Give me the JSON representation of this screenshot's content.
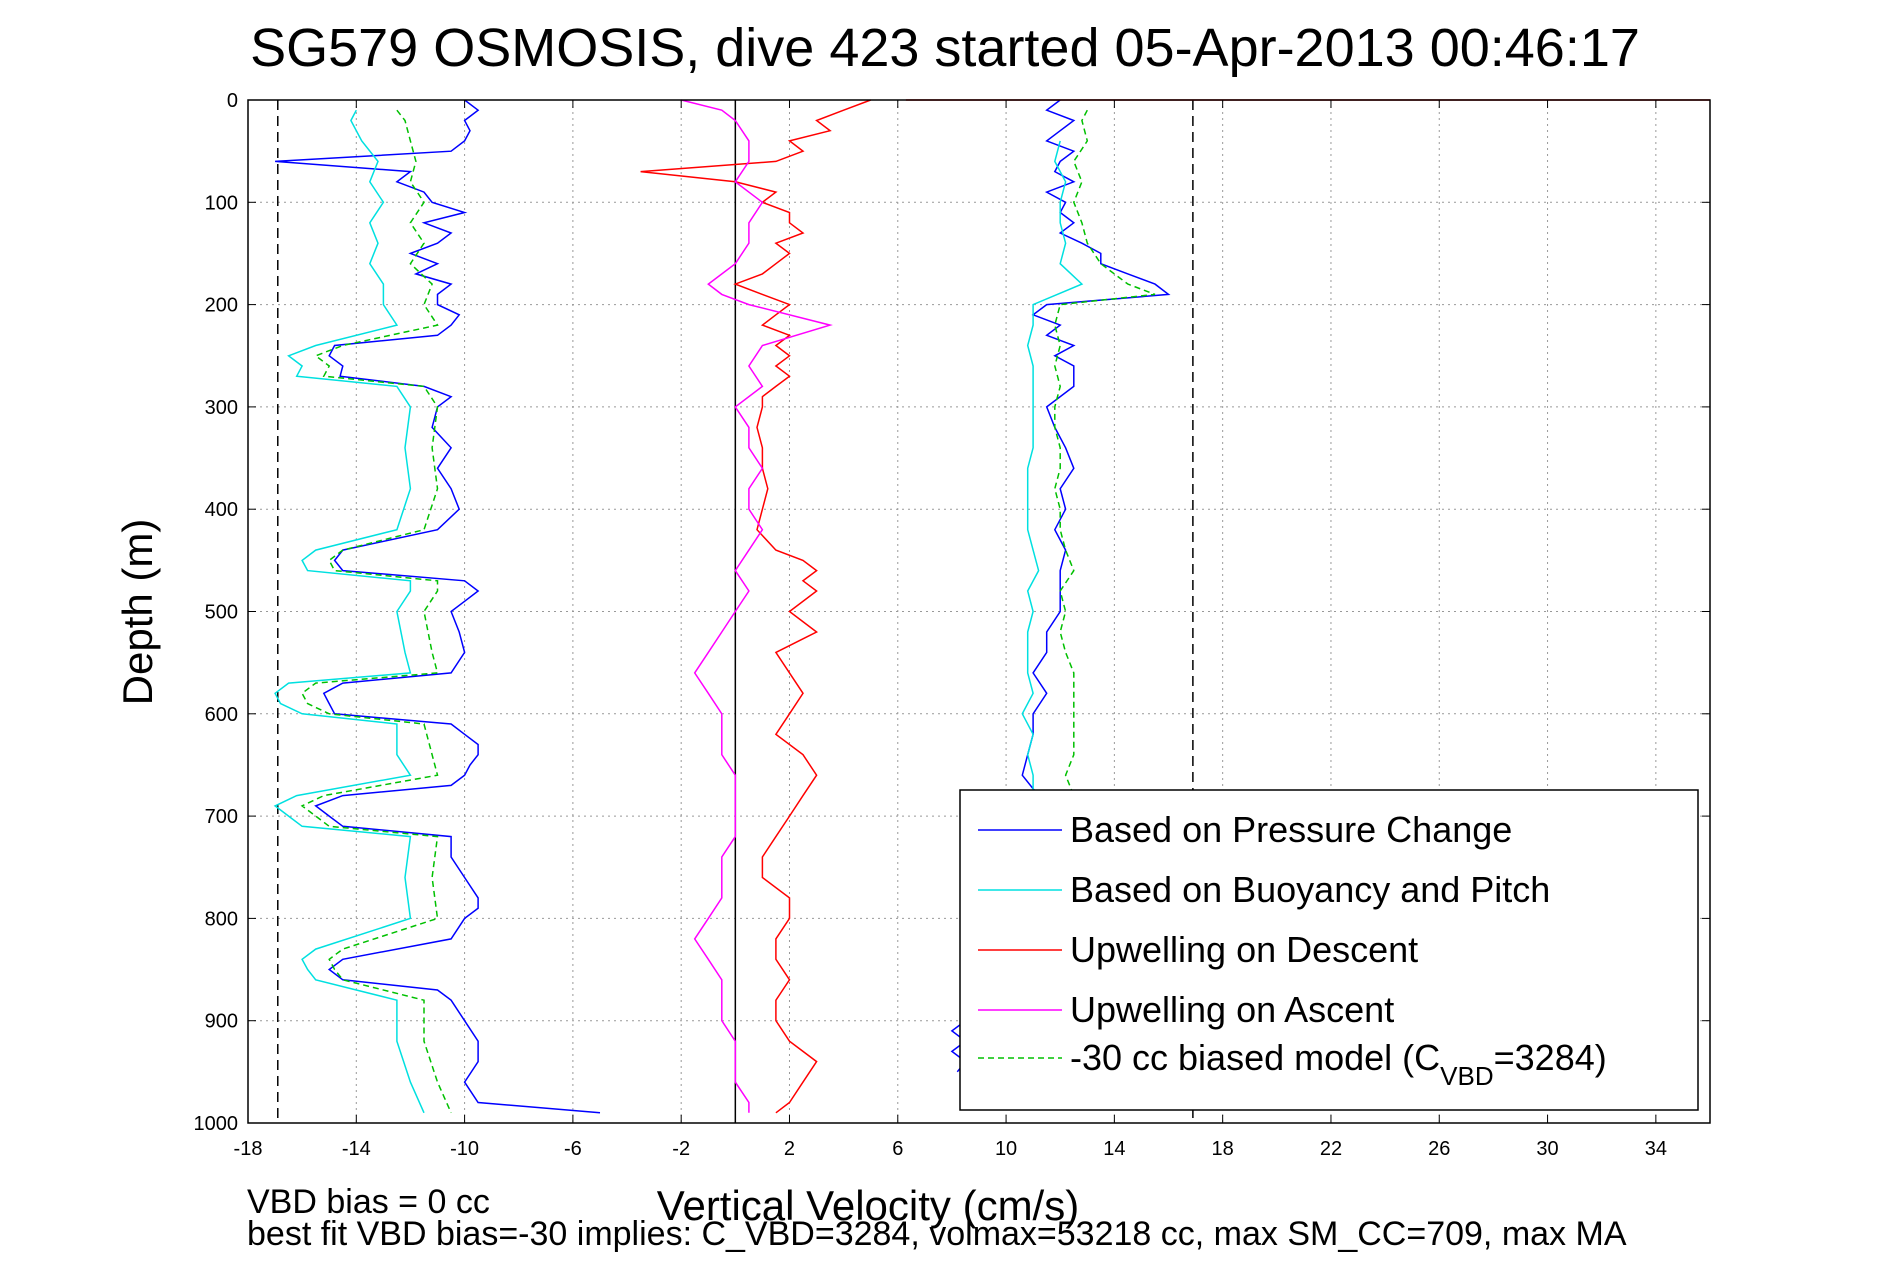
{
  "chart_data": {
    "type": "line",
    "title": "SG579 OSMOSIS, dive 423 started 05-Apr-2013 00:46:17",
    "xlabel": "Vertical Velocity (cm/s)",
    "ylabel": "Depth (m)",
    "xlim": [
      -18,
      36
    ],
    "ylim": [
      0,
      1000
    ],
    "y_reversed": true,
    "xticks": [
      -18,
      -14,
      -10,
      -6,
      -2,
      2,
      6,
      10,
      14,
      18,
      22,
      26,
      30,
      34
    ],
    "yticks": [
      0,
      100,
      200,
      300,
      400,
      500,
      600,
      700,
      800,
      900,
      1000
    ],
    "grid": true,
    "legend_position": "bottom-right",
    "reference_lines": [
      {
        "x": -16.9,
        "style": "dashed",
        "color": "#000000"
      },
      {
        "x": 0,
        "style": "solid",
        "color": "#000000"
      },
      {
        "x": 16.9,
        "style": "dashed",
        "color": "#000000"
      }
    ],
    "series": [
      {
        "name": "Based on Pressure Change",
        "color": "#0000ff",
        "style": "solid",
        "segments": [
          {
            "depth": [
              0,
              10,
              20,
              30,
              40,
              50,
              60,
              70,
              80,
              90,
              100,
              110,
              120,
              130,
              140,
              150,
              160,
              170,
              180,
              190,
              200,
              210,
              220,
              230,
              240,
              250,
              260,
              270,
              280,
              290,
              300,
              320,
              340,
              360,
              380,
              400,
              420,
              440,
              450,
              460,
              470,
              480,
              490,
              500,
              520,
              540,
              560,
              570,
              580,
              590,
              600,
              610,
              620,
              630,
              640,
              650,
              660,
              670,
              680,
              690,
              700,
              710,
              720,
              740,
              760,
              780,
              790,
              800,
              820,
              840,
              850,
              860,
              870,
              880,
              900,
              920,
              940,
              960,
              980,
              990
            ],
            "x": [
              -10,
              -9.5,
              -10,
              -9.8,
              -10,
              -10.5,
              -17,
              -12,
              -12.5,
              -11.5,
              -11.2,
              -10,
              -11.5,
              -10.5,
              -11,
              -12,
              -11,
              -11.8,
              -10.5,
              -11,
              -11,
              -10.2,
              -10.5,
              -11,
              -14.8,
              -15,
              -14.5,
              -14.6,
              -11.5,
              -10.5,
              -11,
              -11.2,
              -10.5,
              -11,
              -10.5,
              -10.2,
              -11,
              -14.5,
              -14.8,
              -14.5,
              -10,
              -9.5,
              -10,
              -10.5,
              -10.2,
              -10,
              -10.5,
              -14.5,
              -15.2,
              -15,
              -14.8,
              -10.5,
              -10,
              -9.5,
              -9.5,
              -9.8,
              -10,
              -10.5,
              -14.5,
              -15.5,
              -15,
              -14.5,
              -10.5,
              -10.5,
              -10,
              -9.5,
              -9.5,
              -10,
              -10.5,
              -14.5,
              -15,
              -14.5,
              -11,
              -10.5,
              -10,
              -9.5,
              -9.5,
              -10,
              -9.5,
              -5
            ]
          },
          {
            "depth": [
              0,
              10,
              20,
              30,
              40,
              50,
              60,
              70,
              80,
              90,
              100,
              110,
              120,
              130,
              140,
              150,
              160,
              170,
              180,
              190,
              200,
              210,
              220,
              230,
              240,
              250,
              260,
              280,
              300,
              320,
              340,
              360,
              380,
              400,
              420,
              440,
              460,
              480,
              500,
              520,
              540,
              560,
              580,
              600,
              620,
              640,
              660,
              680,
              700,
              720,
              740,
              760,
              780,
              800,
              820,
              840,
              860,
              880,
              890,
              900,
              910,
              920,
              930,
              940,
              950
            ],
            "x": [
              12,
              11.5,
              12.5,
              12,
              11.5,
              12.5,
              12,
              11.8,
              12.5,
              11.5,
              12.2,
              12,
              12.5,
              12,
              12.8,
              13.5,
              13.5,
              14.5,
              15.5,
              16,
              11.5,
              11,
              12,
              11.5,
              12.5,
              11.8,
              12.5,
              12.5,
              11.5,
              11.8,
              12.2,
              12.5,
              12,
              12.2,
              11.8,
              12.2,
              12,
              12,
              12,
              11.5,
              11.5,
              11,
              11.5,
              11,
              11,
              10.8,
              10.6,
              11.2,
              11.5,
              11,
              11.5,
              11.5,
              11,
              11.5,
              11.2,
              11,
              11.5,
              11.2,
              8.5,
              8.5,
              8,
              8.5,
              8,
              8.5,
              8.2
            ]
          }
        ]
      },
      {
        "name": "Based on Buoyancy and Pitch",
        "color": "#00e0e0",
        "style": "solid",
        "segments": [
          {
            "depth": [
              10,
              20,
              40,
              60,
              80,
              100,
              120,
              140,
              160,
              180,
              200,
              220,
              240,
              250,
              260,
              270,
              280,
              300,
              340,
              380,
              420,
              440,
              450,
              460,
              470,
              480,
              500,
              540,
              560,
              570,
              580,
              590,
              600,
              610,
              640,
              660,
              680,
              690,
              700,
              710,
              720,
              760,
              800,
              830,
              840,
              850,
              860,
              880,
              920,
              960,
              990
            ],
            "x": [
              -14,
              -14.2,
              -13.8,
              -13.2,
              -13.5,
              -13,
              -13.5,
              -13.2,
              -13.5,
              -13,
              -13,
              -12.5,
              -15.5,
              -16.5,
              -16,
              -16.2,
              -12.5,
              -12,
              -12.2,
              -12,
              -12.5,
              -15.5,
              -16,
              -15.8,
              -12,
              -12,
              -12.5,
              -12.2,
              -12,
              -16.5,
              -17,
              -16.8,
              -16,
              -12.5,
              -12.5,
              -12,
              -16.2,
              -17,
              -16.5,
              -16,
              -12,
              -12.2,
              -12,
              -15.5,
              -16,
              -15.8,
              -15.5,
              -12.5,
              -12.5,
              -12,
              -11.5
            ]
          },
          {
            "depth": [
              40,
              60,
              80,
              100,
              120,
              140,
              160,
              180,
              200,
              220,
              240,
              260,
              280,
              300,
              320,
              340,
              360,
              380,
              400,
              420,
              440,
              460,
              480,
              500,
              520,
              540,
              560,
              580,
              600,
              620,
              640,
              660,
              680,
              700,
              720,
              740,
              760,
              780,
              800
            ],
            "x": [
              12,
              11.8,
              12.2,
              12,
              12,
              12.2,
              12,
              12.8,
              11,
              11,
              10.8,
              11,
              11,
              11,
              11,
              11,
              10.8,
              10.8,
              10.8,
              10.8,
              11,
              11.2,
              10.8,
              11,
              10.8,
              10.8,
              10.8,
              11,
              10.6,
              11,
              10.8,
              11,
              11,
              11,
              11,
              11,
              10.8,
              11,
              10.8
            ]
          }
        ]
      },
      {
        "name": "Upwelling on Descent",
        "color": "#ff0000",
        "style": "solid",
        "segments": [
          {
            "depth": [
              0,
              10,
              20,
              30,
              40,
              50,
              60,
              70,
              80,
              90,
              100,
              110,
              120,
              130,
              140,
              150,
              160,
              170,
              180,
              190,
              200,
              210,
              220,
              230,
              240,
              250,
              260,
              270,
              280,
              290,
              300,
              320,
              340,
              360,
              380,
              400,
              420,
              440,
              450,
              460,
              470,
              480,
              500,
              520,
              540,
              560,
              580,
              600,
              620,
              640,
              660,
              680,
              700,
              720,
              740,
              760,
              780,
              800,
              820,
              840,
              860,
              880,
              900,
              920,
              940,
              960,
              980,
              990
            ],
            "x": [
              5,
              4,
              3,
              3.5,
              2,
              2.5,
              1.5,
              -3.5,
              0,
              1.5,
              1,
              2,
              2,
              2.5,
              1.5,
              2,
              1.5,
              1,
              0,
              1,
              2,
              1.5,
              1,
              2,
              1.5,
              2,
              1.5,
              2,
              1.5,
              1,
              1,
              0.8,
              1,
              1,
              1.2,
              1,
              0.8,
              1.5,
              2.5,
              3,
              2.5,
              3,
              2,
              3,
              1.5,
              2,
              2.5,
              2,
              1.5,
              2.5,
              3,
              2.5,
              2,
              1.5,
              1,
              1,
              2,
              2,
              1.5,
              1.5,
              2,
              1.5,
              1.5,
              2,
              3,
              2.5,
              2,
              1.5
            ]
          },
          {
            "depth": [
              0
            ],
            "x": [
              36
            ]
          }
        ]
      },
      {
        "name": "Upwelling on Ascent",
        "color": "#ff00ff",
        "style": "solid",
        "segments": [
          {
            "depth": [
              0,
              10,
              20,
              40,
              60,
              80,
              100,
              120,
              140,
              160,
              180,
              190,
              200,
              220,
              240,
              260,
              280,
              300,
              320,
              340,
              360,
              380,
              400,
              420,
              440,
              460,
              480,
              500,
              520,
              540,
              560,
              580,
              600,
              620,
              640,
              660,
              680,
              700,
              720,
              740,
              760,
              780,
              800,
              820,
              840,
              860,
              880,
              900,
              920,
              940,
              960,
              980,
              990
            ],
            "x": [
              -2,
              -0.5,
              0,
              0.5,
              0.5,
              0,
              1,
              0.5,
              0.5,
              0,
              -1,
              -0.5,
              0.5,
              3.5,
              1,
              0.5,
              1,
              0,
              0.5,
              0.5,
              1,
              0.5,
              0.5,
              1,
              0.5,
              0,
              0.5,
              0,
              -0.5,
              -1,
              -1.5,
              -1,
              -0.5,
              -0.5,
              -0.5,
              0,
              0,
              0,
              0,
              -0.5,
              -0.5,
              -0.5,
              -1,
              -1.5,
              -1,
              -0.5,
              -0.5,
              -0.5,
              0,
              0,
              0,
              0.5,
              0.5
            ]
          }
        ]
      },
      {
        "name": "-30 cc biased model (C",
        "name_sub": "VBD",
        "name_tail": "=3284)",
        "color": "#00c000",
        "style": "dashed",
        "segments": [
          {
            "depth": [
              10,
              20,
              40,
              60,
              80,
              100,
              120,
              140,
              160,
              180,
              200,
              220,
              240,
              250,
              260,
              270,
              280,
              300,
              340,
              380,
              420,
              440,
              450,
              460,
              470,
              480,
              500,
              540,
              560,
              570,
              580,
              590,
              600,
              610,
              640,
              660,
              680,
              690,
              700,
              710,
              720,
              760,
              800,
              830,
              840,
              850,
              860,
              880,
              920,
              960,
              990
            ],
            "x": [
              -12.5,
              -12.2,
              -12,
              -11.8,
              -12,
              -11.5,
              -12,
              -11.5,
              -12,
              -11.2,
              -11.5,
              -11,
              -14.5,
              -15.5,
              -15,
              -15.2,
              -11.5,
              -11,
              -11.2,
              -11,
              -11.5,
              -14.5,
              -15,
              -14.8,
              -11,
              -11,
              -11.5,
              -11.2,
              -11,
              -15.5,
              -16,
              -15.8,
              -15,
              -11.5,
              -11.2,
              -11,
              -15.2,
              -16,
              -15.5,
              -15,
              -11,
              -11.2,
              -11,
              -14.5,
              -15,
              -14.8,
              -14.5,
              -11.5,
              -11.5,
              -11,
              -10.5
            ]
          },
          {
            "depth": [
              10,
              20,
              40,
              60,
              80,
              100,
              120,
              140,
              160,
              180,
              190,
              200,
              220,
              240,
              260,
              280,
              300,
              320,
              340,
              360,
              380,
              400,
              420,
              440,
              460,
              480,
              500,
              520,
              540,
              560,
              580,
              600,
              620,
              640,
              660,
              680,
              700,
              720,
              740,
              760,
              780,
              800
            ],
            "x": [
              13,
              12.8,
              13,
              12.5,
              12.8,
              12.5,
              12.8,
              13,
              13.5,
              14.5,
              15.5,
              12,
              11.8,
              12,
              11.8,
              12,
              11.8,
              11.8,
              12,
              12,
              11.8,
              12,
              12,
              12.2,
              12.5,
              12,
              12.2,
              12,
              12.2,
              12.5,
              12.5,
              12.5,
              12.5,
              12.5,
              12.2,
              12.5,
              12.2,
              12,
              12.2,
              12,
              12.2,
              12
            ]
          }
        ]
      }
    ]
  },
  "footer": {
    "line1": "VBD bias = 0 cc",
    "line2": "best fit VBD bias=-30 implies: C_VBD=3284, volmax=53218 cc, max SM_CC=709, max MA"
  }
}
